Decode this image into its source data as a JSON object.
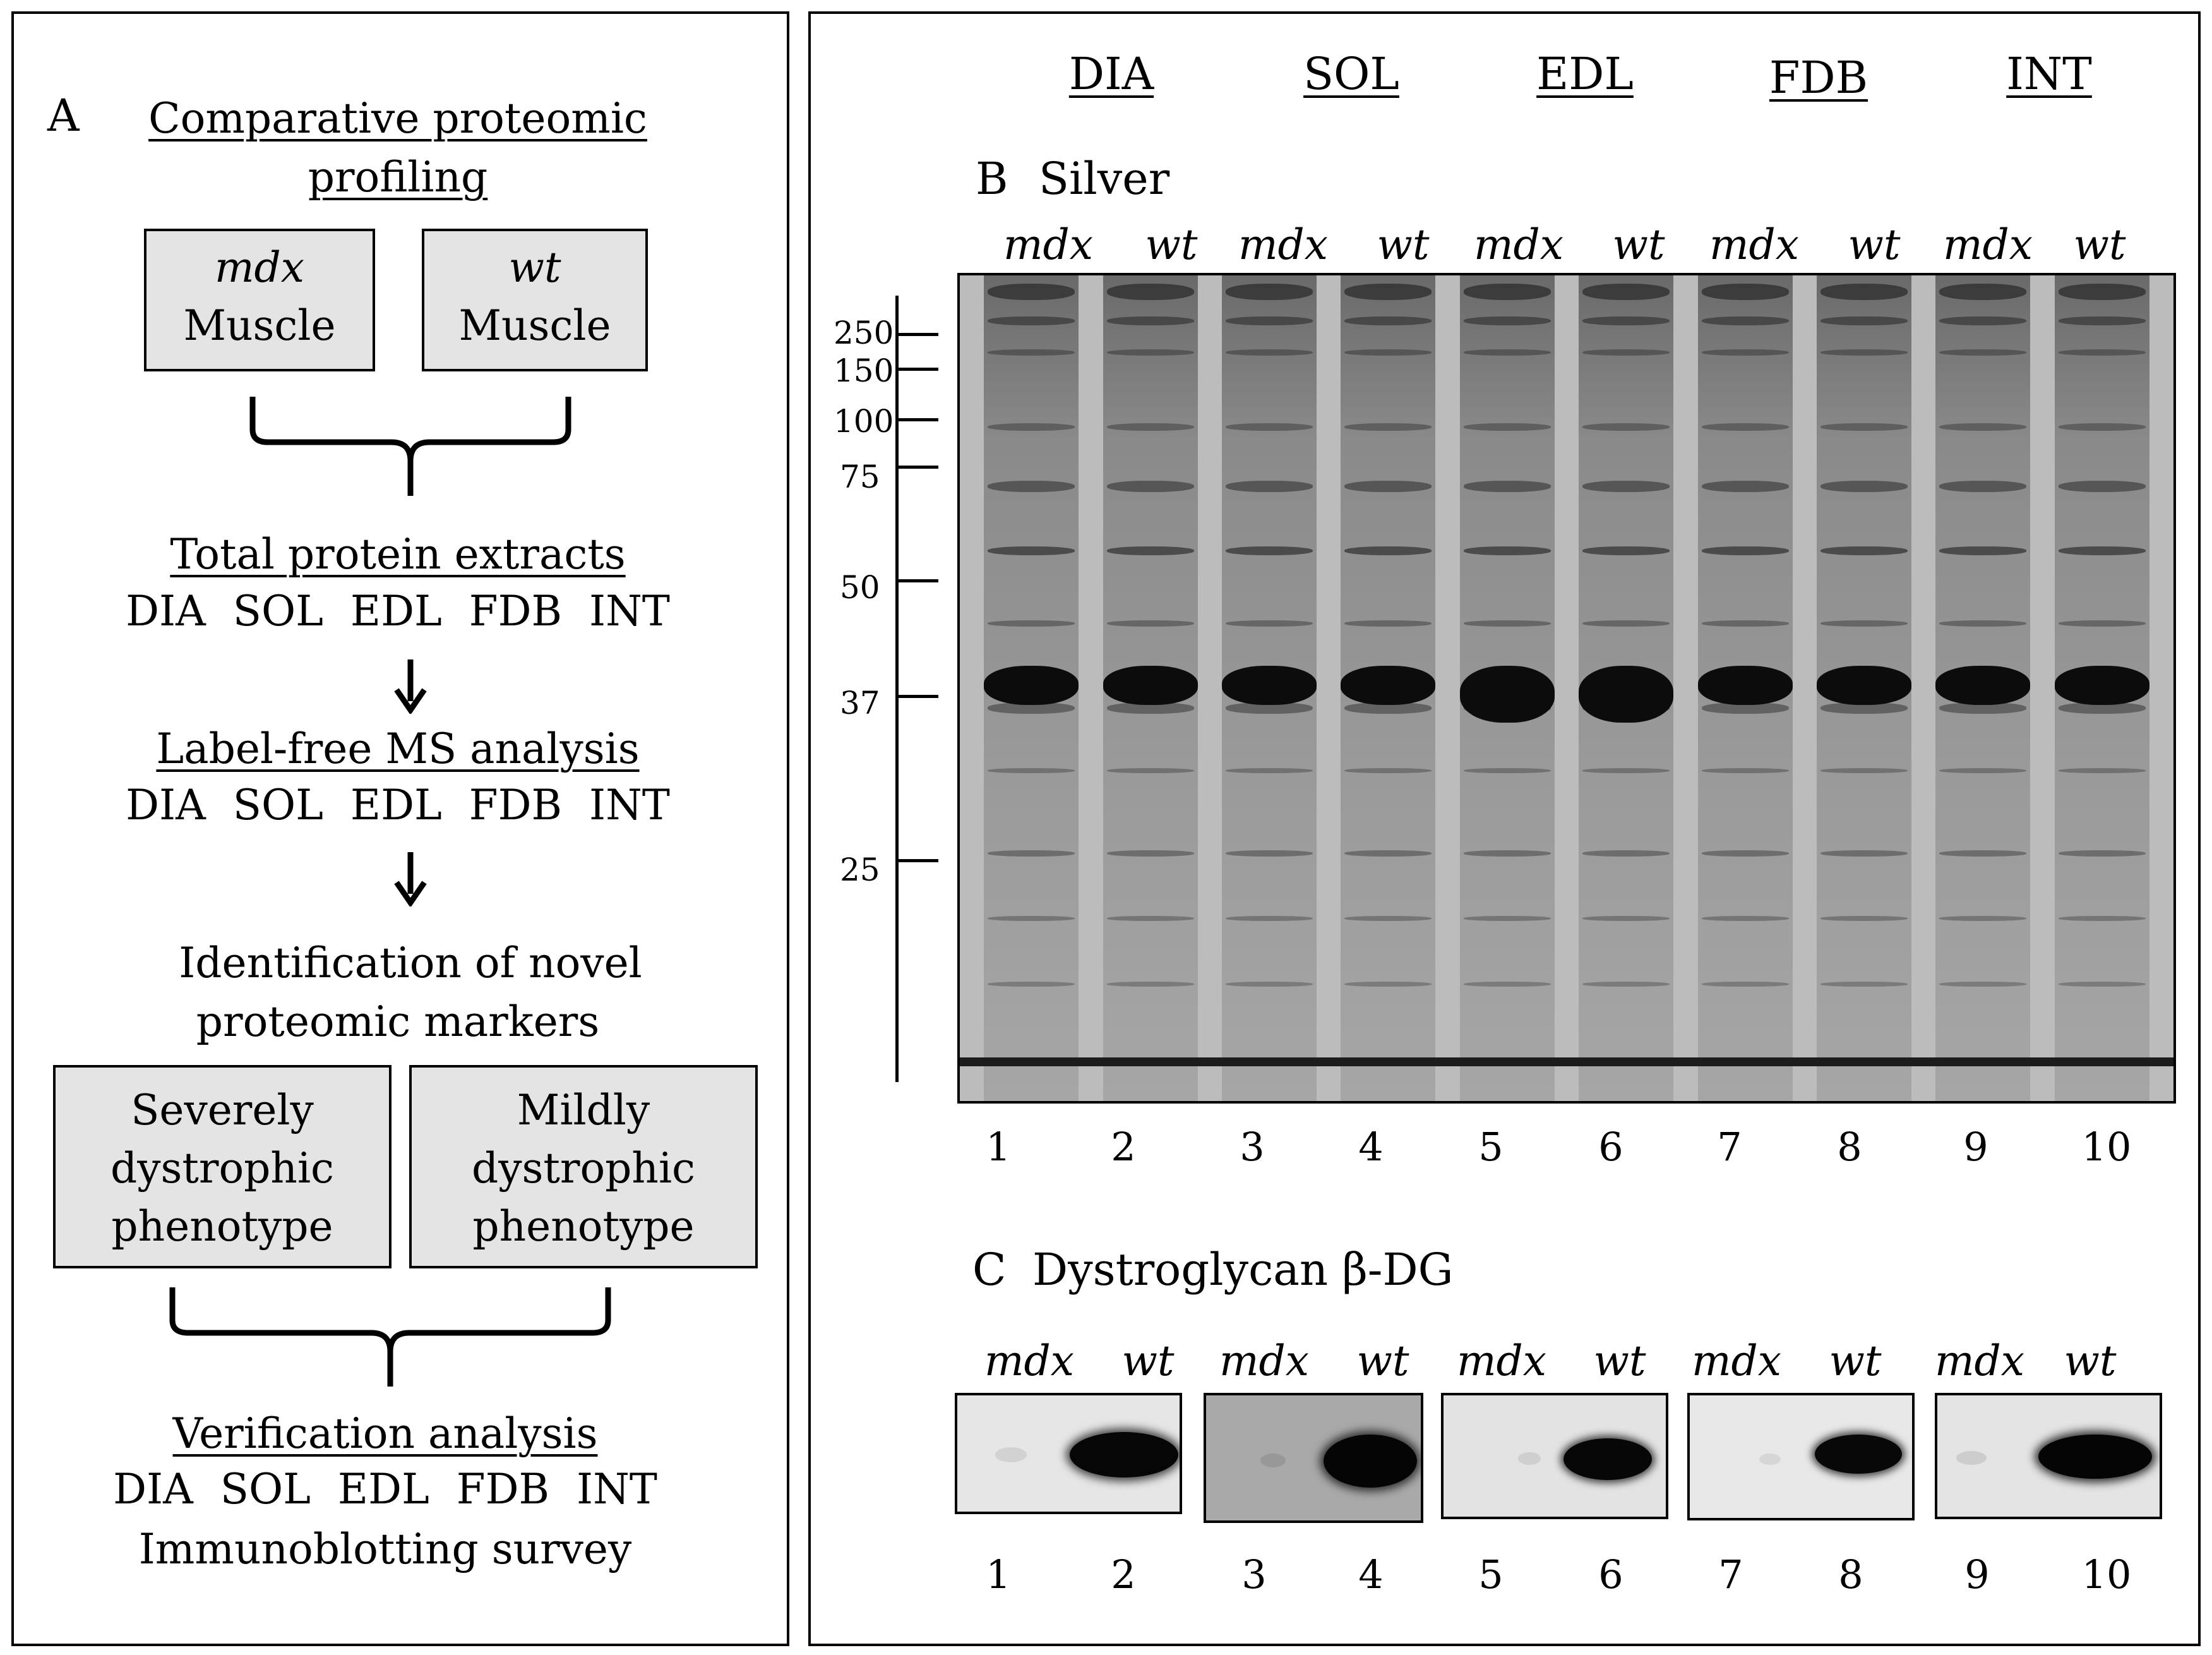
{
  "panel_a": {
    "letter": "A",
    "title_line1": "Comparative proteomic",
    "title_line2": "profiling",
    "box_mdx_top": "mdx",
    "box_mdx_bottom": "Muscle",
    "box_wt_top": "wt",
    "box_wt_bottom": "Muscle",
    "total_extracts": "Total protein extracts",
    "muscles_row1": "DIA SOL EDL FDB INT",
    "label_free": "Label-free MS analysis",
    "muscles_row2": "DIA SOL EDL FDB INT",
    "identification_line1": "Identification of novel",
    "identification_line2": "proteomic markers",
    "severe_box": [
      "Severely",
      "dystrophic",
      "phenotype"
    ],
    "mild_box": [
      "Mildly",
      "dystrophic",
      "phenotype"
    ],
    "verification": "Verification analysis",
    "muscles_row3": "DIA SOL EDL FDB INT",
    "immunoblot": "Immunoblotting survey"
  },
  "panel_b": {
    "muscle_headers": [
      "DIA",
      "SOL",
      "EDL",
      "FDB",
      "INT"
    ],
    "letter": "B",
    "title": "Silver",
    "genotypes": [
      "mdx",
      "wt"
    ],
    "markers": [
      "250",
      "150",
      "100",
      "75",
      "50",
      "37",
      "25"
    ],
    "lane_numbers": [
      "1",
      "2",
      "3",
      "4",
      "5",
      "6",
      "7",
      "8",
      "9",
      "10"
    ]
  },
  "panel_c": {
    "letter": "C",
    "title": "Dystroglycan β-DG",
    "genotypes": [
      "mdx",
      "wt"
    ],
    "lane_numbers": [
      "1",
      "2",
      "3",
      "4",
      "5",
      "6",
      "7",
      "8",
      "9",
      "10"
    ]
  }
}
